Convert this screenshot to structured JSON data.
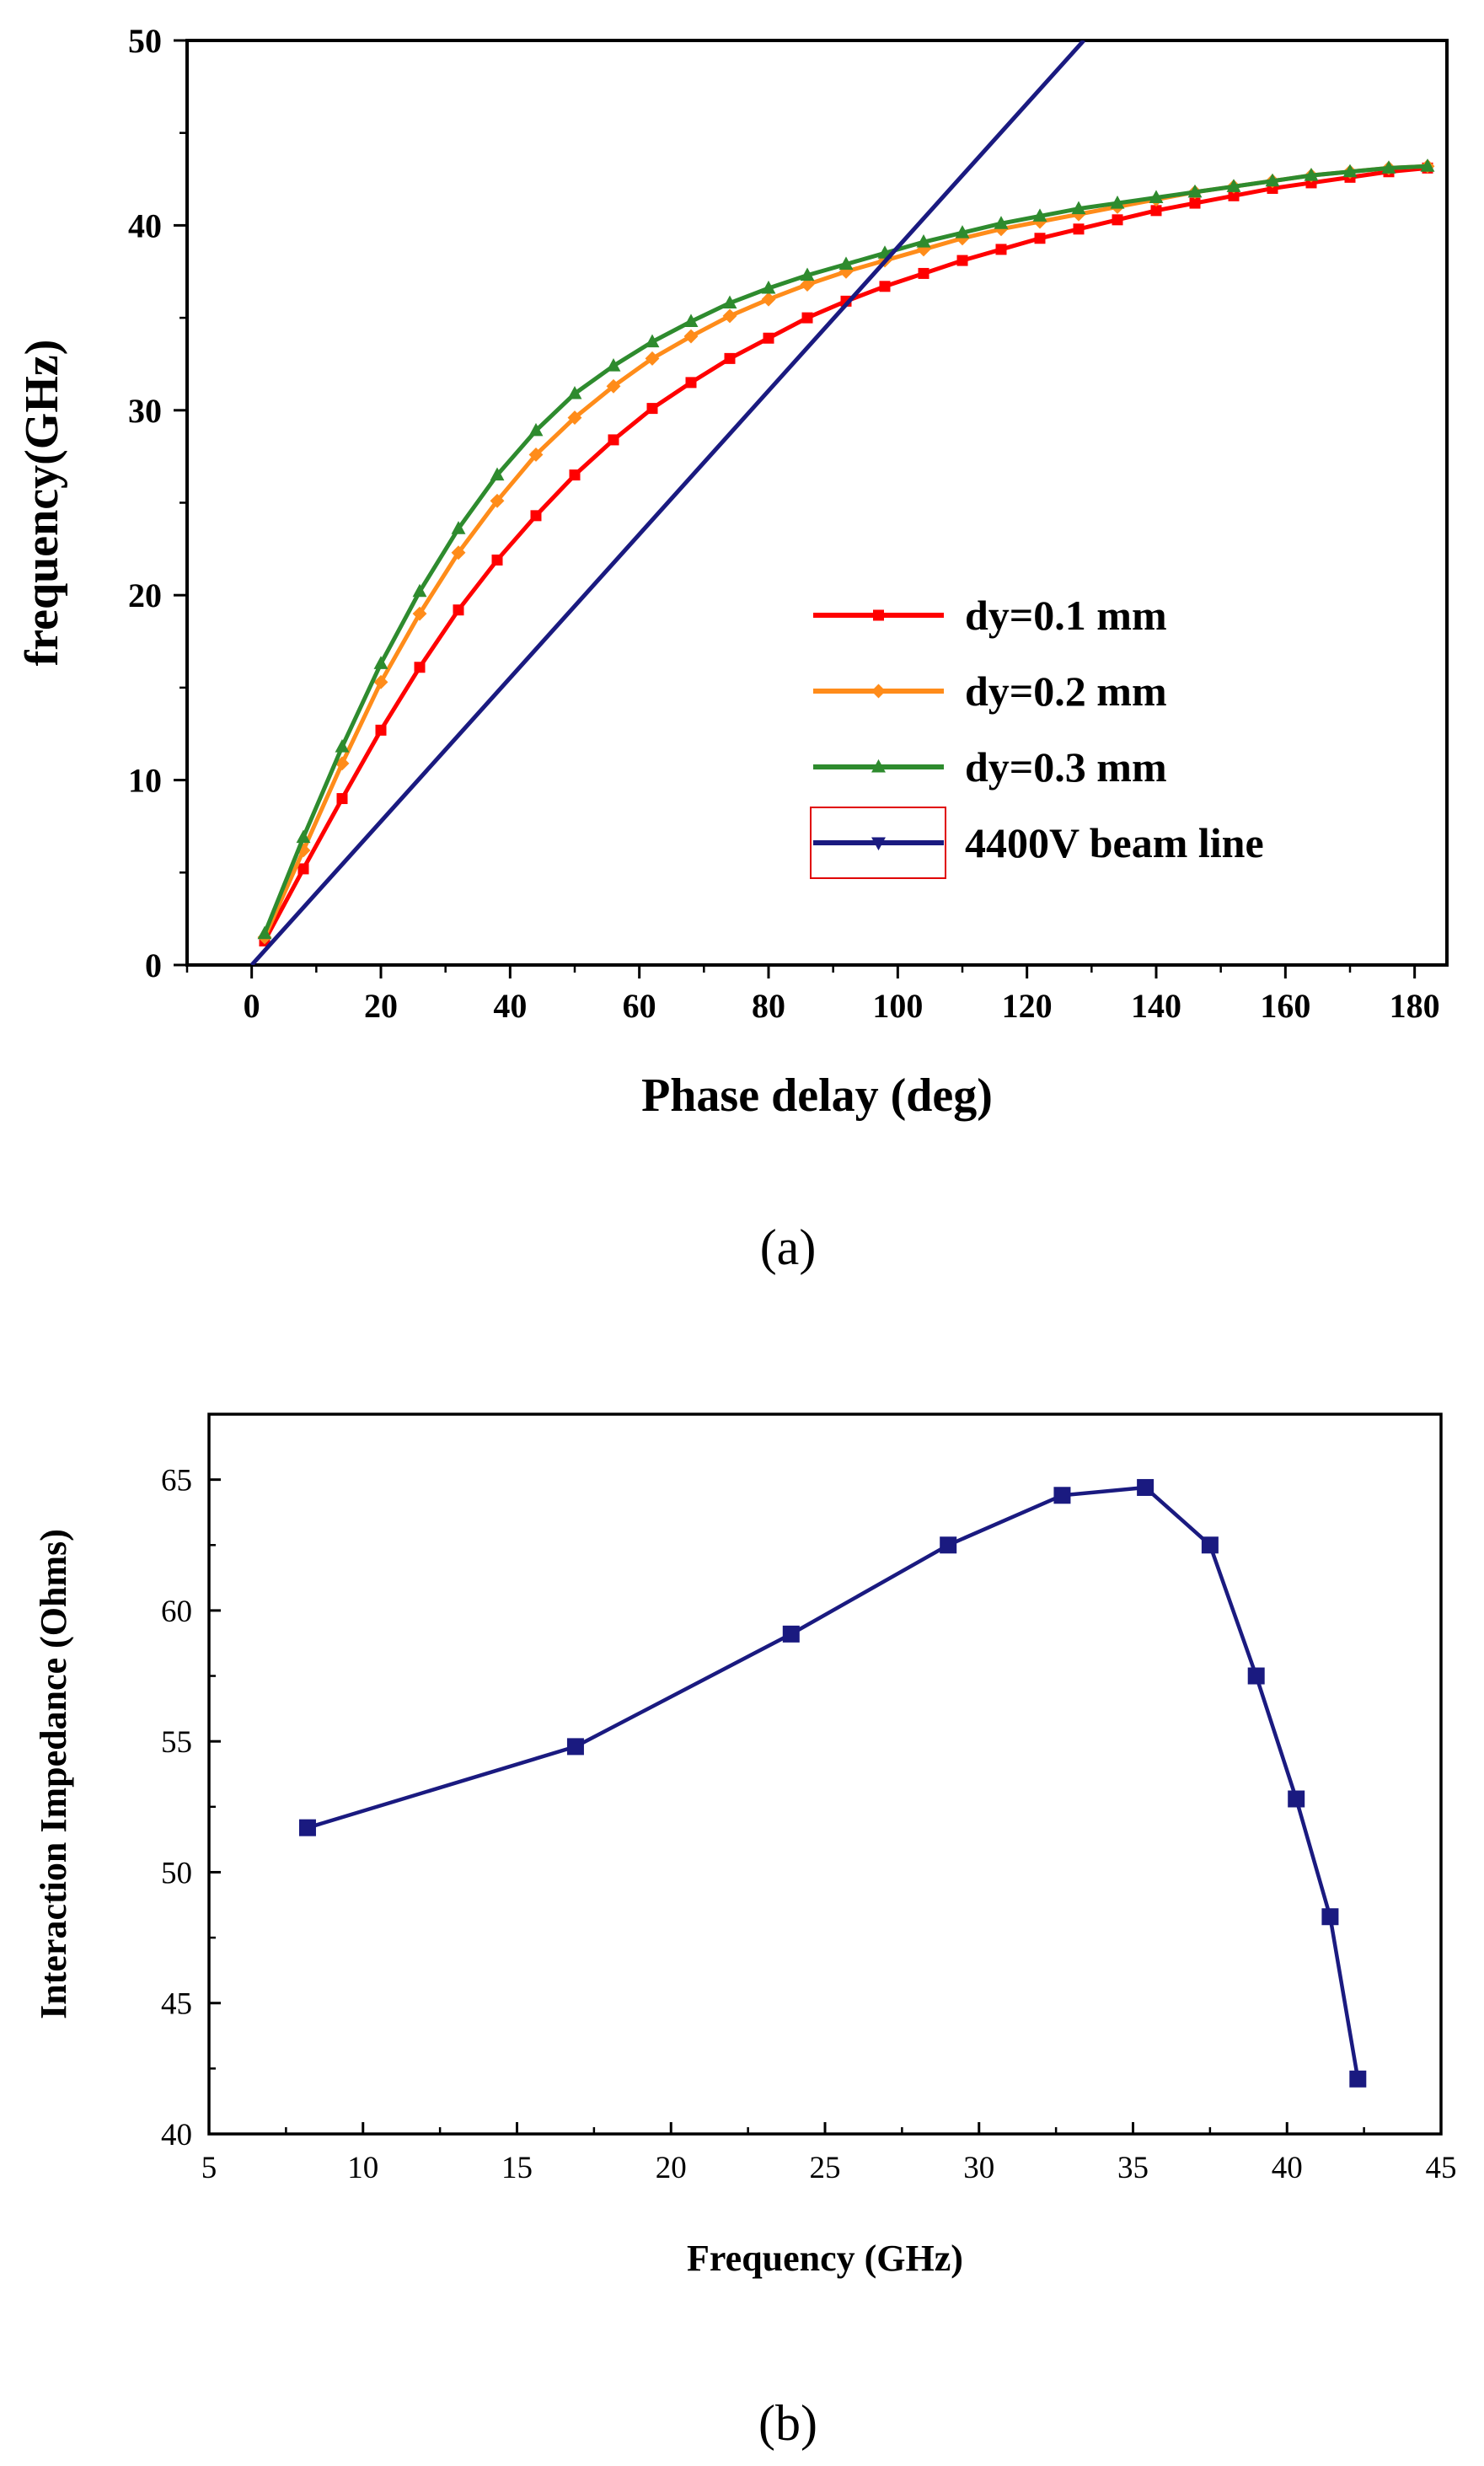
{
  "chart_data": [
    {
      "type": "line",
      "caption": "(a)",
      "xlabel": "Phase delay (deg)",
      "ylabel": "frequency(GHz)",
      "xlim": [
        -10,
        185
      ],
      "ylim": [
        0,
        50
      ],
      "xticks": [
        0,
        20,
        40,
        60,
        80,
        100,
        120,
        140,
        160,
        180
      ],
      "yticks": [
        0,
        10,
        20,
        30,
        40,
        50
      ],
      "legend_position": "bottom-right",
      "series": [
        {
          "name": "dy=0.1 mm",
          "color": "#ff0000",
          "marker": "square",
          "x": [
            2,
            8,
            14,
            20,
            26,
            32,
            38,
            44,
            50,
            56,
            62,
            68,
            74,
            80,
            86,
            92,
            98,
            104,
            110,
            116,
            122,
            128,
            134,
            140,
            146,
            152,
            158,
            164,
            170,
            176,
            182
          ],
          "y": [
            1.3,
            5.2,
            9.0,
            12.7,
            16.1,
            19.2,
            21.9,
            24.3,
            26.5,
            28.4,
            30.1,
            31.5,
            32.8,
            33.9,
            35.0,
            35.9,
            36.7,
            37.4,
            38.1,
            38.7,
            39.3,
            39.8,
            40.3,
            40.8,
            41.2,
            41.6,
            42.0,
            42.3,
            42.6,
            42.9,
            43.1
          ]
        },
        {
          "name": "dy=0.2 mm",
          "color": "#ff8c1a",
          "marker": "diamond",
          "x": [
            2,
            8,
            14,
            20,
            26,
            32,
            38,
            44,
            50,
            56,
            62,
            68,
            74,
            80,
            86,
            92,
            98,
            104,
            110,
            116,
            122,
            128,
            134,
            140,
            146,
            152,
            158,
            164,
            170,
            176,
            182
          ],
          "y": [
            1.5,
            6.2,
            10.9,
            15.3,
            19.0,
            22.3,
            25.1,
            27.6,
            29.6,
            31.3,
            32.8,
            34.0,
            35.1,
            36.0,
            36.8,
            37.5,
            38.1,
            38.7,
            39.3,
            39.8,
            40.2,
            40.6,
            41.0,
            41.4,
            41.8,
            42.1,
            42.4,
            42.7,
            42.9,
            43.1,
            43.2
          ]
        },
        {
          "name": "dy=0.3 mm",
          "color": "#2e8b2e",
          "marker": "triangle-up",
          "x": [
            2,
            8,
            14,
            20,
            26,
            32,
            38,
            44,
            50,
            56,
            62,
            68,
            74,
            80,
            86,
            92,
            98,
            104,
            110,
            116,
            122,
            128,
            134,
            140,
            146,
            152,
            158,
            164,
            170,
            176,
            182
          ],
          "y": [
            1.7,
            6.9,
            11.8,
            16.3,
            20.2,
            23.6,
            26.5,
            28.9,
            30.9,
            32.4,
            33.7,
            34.8,
            35.8,
            36.6,
            37.3,
            37.9,
            38.5,
            39.1,
            39.6,
            40.1,
            40.5,
            40.9,
            41.2,
            41.5,
            41.8,
            42.1,
            42.4,
            42.7,
            42.9,
            43.1,
            43.2
          ]
        },
        {
          "name": "4400V beam line",
          "color": "#1a1a80",
          "marker": "none",
          "x": [
            0,
            128.8
          ],
          "y": [
            0,
            50
          ]
        }
      ]
    },
    {
      "type": "line",
      "caption": "(b)",
      "xlabel": "Frequency (GHz)",
      "ylabel": "Interaction Impedance (Ohms)",
      "xlim": [
        5,
        45
      ],
      "ylim": [
        40,
        67.5
      ],
      "xticks": [
        5,
        10,
        15,
        20,
        25,
        30,
        35,
        40,
        45
      ],
      "yticks": [
        40,
        45,
        50,
        55,
        60,
        65
      ],
      "series": [
        {
          "color": "#1a1a80",
          "marker": "square",
          "x": [
            8.2,
            16.9,
            23.9,
            29.0,
            32.7,
            35.4,
            37.5,
            39.0,
            40.3,
            41.4,
            42.3
          ],
          "y": [
            51.7,
            54.8,
            59.1,
            62.5,
            64.4,
            64.7,
            62.5,
            57.5,
            52.8,
            48.3,
            42.1
          ]
        }
      ]
    }
  ]
}
